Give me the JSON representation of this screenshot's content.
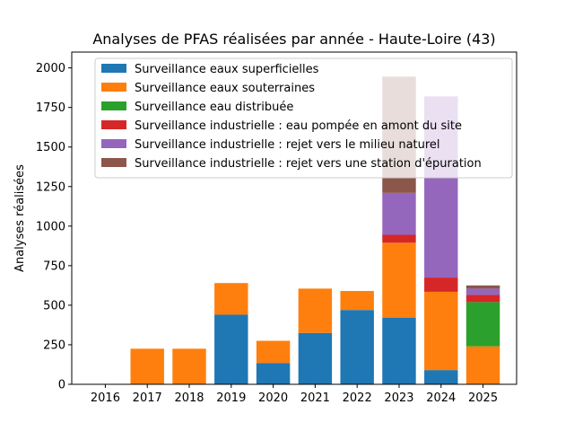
{
  "chart_data": {
    "type": "bar",
    "stacked": true,
    "title": "Analyses de PFAS réalisées par année - Haute-Loire (43)",
    "xlabel": "",
    "ylabel": "Analyses réalisées",
    "categories": [
      "2016",
      "2017",
      "2018",
      "2019",
      "2020",
      "2021",
      "2022",
      "2023",
      "2024",
      "2025"
    ],
    "ylim": [
      0,
      2100
    ],
    "yticks": [
      0,
      250,
      500,
      750,
      1000,
      1250,
      1500,
      1750,
      2000
    ],
    "grid": false,
    "legend_position": "upper-right",
    "series": [
      {
        "name": "Surveillance eaux superficielles",
        "color": "#1f77b4",
        "values": [
          0,
          0,
          0,
          440,
          135,
          325,
          470,
          420,
          90,
          0
        ]
      },
      {
        "name": "Surveillance eaux souterraines",
        "color": "#ff7f0e",
        "values": [
          0,
          225,
          225,
          200,
          140,
          280,
          120,
          475,
          495,
          240
        ]
      },
      {
        "name": "Surveillance eau distribuée",
        "color": "#2ca02c",
        "values": [
          0,
          0,
          0,
          0,
          0,
          0,
          0,
          0,
          0,
          280
        ]
      },
      {
        "name": "Surveillance industrielle : eau pompée en amont du site",
        "color": "#d62728",
        "values": [
          0,
          0,
          0,
          0,
          0,
          0,
          0,
          50,
          90,
          45
        ]
      },
      {
        "name": "Surveillance industrielle : rejet vers le milieu naturel",
        "color": "#9467bd",
        "values": [
          0,
          0,
          0,
          0,
          0,
          0,
          0,
          265,
          1145,
          40
        ]
      },
      {
        "name": "Surveillance industrielle : rejet vers une station d'épuration",
        "color": "#8c564b",
        "values": [
          0,
          0,
          0,
          0,
          0,
          0,
          0,
          735,
          0,
          20
        ]
      }
    ]
  }
}
